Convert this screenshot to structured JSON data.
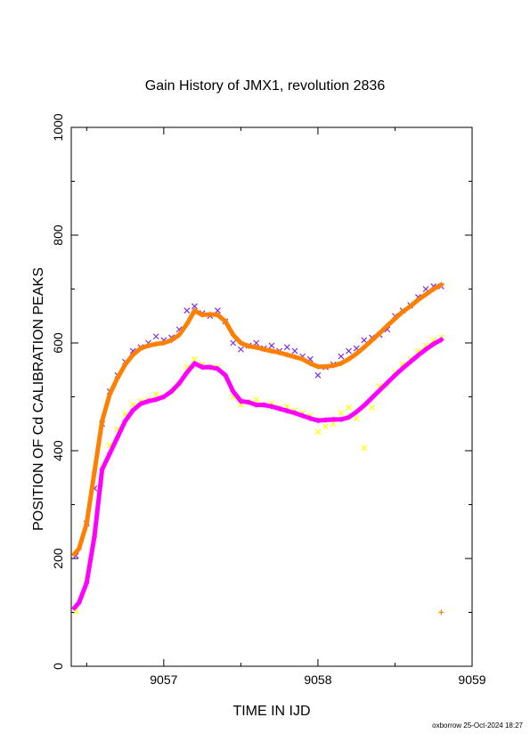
{
  "chart_data": {
    "type": "scatter",
    "title": "Gain History of JMX1, revolution 2836",
    "xlabel": "TIME IN IJD",
    "ylabel": "POSITION OF Cd CALIBRATION PEAKS",
    "xlim": [
      9056.4,
      9059
    ],
    "ylim": [
      0,
      1000
    ],
    "xticks": [
      "9057",
      "9058",
      "9059"
    ],
    "yticks": [
      "0",
      "200",
      "400",
      "600",
      "800",
      "1000"
    ],
    "grid": false,
    "legend": "none",
    "series": [
      {
        "marker": "x",
        "color": "#7b2cf0",
        "x": [
          9056.43,
          9056.5,
          9056.55,
          9056.6,
          9056.65,
          9056.7,
          9056.75,
          9056.8,
          9056.85,
          9056.9,
          9056.95,
          9057.0,
          9057.05,
          9057.1,
          9057.15,
          9057.2,
          9057.25,
          9057.3,
          9057.35,
          9057.4,
          9057.45,
          9057.5,
          9057.55,
          9057.6,
          9057.65,
          9057.7,
          9057.75,
          9057.8,
          9057.85,
          9057.9,
          9057.95,
          9058.0,
          9058.05,
          9058.1,
          9058.15,
          9058.2,
          9058.25,
          9058.3,
          9058.35,
          9058.4,
          9058.45,
          9058.5,
          9058.55,
          9058.6,
          9058.65,
          9058.7,
          9058.75,
          9058.8
        ],
        "y": [
          205,
          265,
          330,
          450,
          510,
          540,
          565,
          585,
          592,
          600,
          612,
          605,
          610,
          625,
          660,
          668,
          655,
          650,
          660,
          640,
          600,
          588,
          595,
          600,
          590,
          595,
          585,
          592,
          585,
          575,
          570,
          540,
          555,
          560,
          575,
          585,
          590,
          605,
          610,
          615,
          625,
          650,
          660,
          670,
          685,
          700,
          705,
          705
        ]
      },
      {
        "marker": "x",
        "color": "#ffff00",
        "x": [
          9056.43,
          9056.5,
          9056.55,
          9056.6,
          9056.65,
          9056.7,
          9056.75,
          9056.8,
          9056.85,
          9056.9,
          9056.95,
          9057.0,
          9057.05,
          9057.1,
          9057.15,
          9057.2,
          9057.25,
          9057.3,
          9057.35,
          9057.4,
          9057.45,
          9057.5,
          9057.55,
          9057.6,
          9057.65,
          9057.7,
          9057.75,
          9057.8,
          9057.85,
          9057.9,
          9057.95,
          9058.0,
          9058.05,
          9058.1,
          9058.15,
          9058.2,
          9058.25,
          9058.3,
          9058.35,
          9058.4,
          9058.45,
          9058.5,
          9058.55,
          9058.6,
          9058.65,
          9058.7,
          9058.75,
          9058.8
        ],
        "y": [
          102,
          160,
          250,
          370,
          410,
          440,
          468,
          485,
          492,
          495,
          505,
          500,
          510,
          525,
          555,
          570,
          560,
          555,
          555,
          540,
          500,
          485,
          490,
          495,
          485,
          488,
          480,
          482,
          475,
          470,
          465,
          435,
          445,
          450,
          470,
          480,
          460,
          405,
          480,
          520,
          525,
          545,
          560,
          570,
          585,
          595,
          605,
          610
        ]
      },
      {
        "marker": "+",
        "color": "#ff00ff",
        "x": [
          9056.42,
          9056.45,
          9056.5,
          9056.55,
          9056.6,
          9056.65,
          9056.7,
          9056.75,
          9056.8,
          9056.85,
          9056.9,
          9056.95,
          9057.0,
          9057.05,
          9057.1,
          9057.15,
          9057.2,
          9057.25,
          9057.3,
          9057.35,
          9057.4,
          9057.45,
          9057.5,
          9057.55,
          9057.6,
          9057.65,
          9057.7,
          9057.75,
          9057.8,
          9057.85,
          9057.9,
          9057.95,
          9058.0,
          9058.05,
          9058.1,
          9058.15,
          9058.2,
          9058.25,
          9058.3,
          9058.35,
          9058.4,
          9058.45,
          9058.5,
          9058.55,
          9058.6,
          9058.65,
          9058.7,
          9058.75,
          9058.8
        ],
        "y": [
          108,
          118,
          155,
          240,
          365,
          395,
          425,
          455,
          475,
          487,
          492,
          495,
          500,
          510,
          525,
          545,
          562,
          555,
          555,
          552,
          540,
          510,
          492,
          490,
          485,
          485,
          482,
          478,
          474,
          470,
          465,
          460,
          456,
          457,
          458,
          458,
          462,
          472,
          484,
          498,
          512,
          526,
          540,
          553,
          565,
          577,
          588,
          598,
          606
        ]
      },
      {
        "marker": "+",
        "color": "#ff8000",
        "x": [
          9056.42,
          9056.45,
          9056.5,
          9056.55,
          9056.6,
          9056.65,
          9056.7,
          9056.75,
          9056.8,
          9056.85,
          9056.9,
          9056.95,
          9057.0,
          9057.05,
          9057.1,
          9057.15,
          9057.2,
          9057.25,
          9057.3,
          9057.35,
          9057.4,
          9057.45,
          9057.5,
          9057.55,
          9057.6,
          9057.65,
          9057.7,
          9057.75,
          9057.8,
          9057.85,
          9057.9,
          9057.95,
          9058.0,
          9058.05,
          9058.1,
          9058.15,
          9058.2,
          9058.25,
          9058.3,
          9058.35,
          9058.4,
          9058.45,
          9058.5,
          9058.55,
          9058.6,
          9058.65,
          9058.7,
          9058.75,
          9058.8,
          9058.8
        ],
        "y": [
          208,
          218,
          265,
          360,
          455,
          505,
          535,
          560,
          578,
          590,
          595,
          598,
          600,
          605,
          615,
          635,
          660,
          652,
          653,
          652,
          640,
          615,
          600,
          594,
          592,
          588,
          585,
          582,
          578,
          574,
          570,
          562,
          556,
          556,
          558,
          562,
          570,
          580,
          592,
          605,
          618,
          632,
          645,
          658,
          668,
          680,
          690,
          700,
          708,
          100
        ]
      }
    ]
  },
  "footer": {
    "credit": "oxborrow 25-Oct-2024 18:27"
  }
}
